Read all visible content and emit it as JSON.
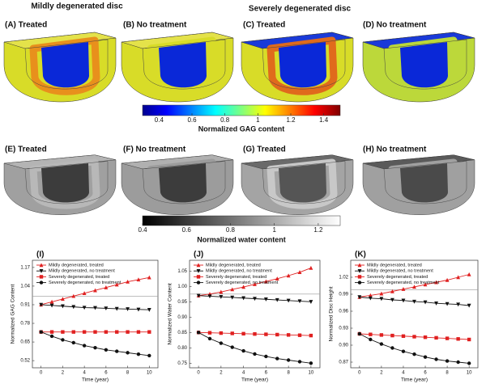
{
  "header": {
    "left_title": "Mildly degenerated disc",
    "right_title": "Severely degenerated disc"
  },
  "panels": [
    "(A) Treated",
    "(B) No treatment",
    "(C) Treated",
    "(D) No treatment",
    "(E) Treated",
    "(F) No treatment",
    "(G) Treated",
    "(H) No treatment"
  ],
  "colorbars": [
    {
      "label": "Normalized GAG content",
      "lim": [
        0.3,
        1.5
      ],
      "ticks": [
        0.4,
        0.6,
        0.8,
        1,
        1.2,
        1.4
      ]
    },
    {
      "label": "Normalized water content",
      "lim": [
        0.4,
        1.3
      ],
      "ticks": [
        0.4,
        0.6,
        0.8,
        1,
        1.2
      ]
    }
  ],
  "chart_data": [
    {
      "type": "line",
      "panel_label": "(I)",
      "xlabel": "Time (year)",
      "ylabel": "Normalized GAG Content",
      "legend": "upper left",
      "x": [
        0,
        1,
        2,
        3,
        4,
        5,
        6,
        7,
        8,
        9,
        10
      ],
      "xlim": [
        -0.8,
        10.8
      ],
      "xticks": [
        0,
        2,
        4,
        6,
        8,
        10
      ],
      "ylim": [
        0.47,
        1.22
      ],
      "yticks": [
        0.52,
        0.65,
        0.78,
        0.91,
        1.04,
        1.17
      ],
      "reference_line": 0.97,
      "series": [
        {
          "name": "Mildly degenerated, treated",
          "color": "#e02020",
          "marker": "triangle-up",
          "values": [
            0.91,
            0.93,
            0.95,
            0.97,
            0.99,
            1.01,
            1.03,
            1.05,
            1.07,
            1.085,
            1.1
          ]
        },
        {
          "name": "Mildly degenerated, no treatment",
          "color": "#111111",
          "marker": "triangle-down",
          "values": [
            0.91,
            0.905,
            0.9,
            0.895,
            0.89,
            0.888,
            0.885,
            0.882,
            0.88,
            0.877,
            0.875
          ]
        },
        {
          "name": "Severely degenerated, treated",
          "color": "#e02020",
          "marker": "square",
          "values": [
            0.72,
            0.72,
            0.72,
            0.72,
            0.72,
            0.72,
            0.72,
            0.72,
            0.72,
            0.72,
            0.72
          ]
        },
        {
          "name": "Severely degenerated, no treatment",
          "color": "#111111",
          "marker": "circle",
          "values": [
            0.72,
            0.69,
            0.665,
            0.645,
            0.625,
            0.61,
            0.595,
            0.585,
            0.575,
            0.565,
            0.555
          ]
        }
      ]
    },
    {
      "type": "line",
      "panel_label": "(J)",
      "xlabel": "Time (year)",
      "ylabel": "Normalized Water Content",
      "legend": "upper left",
      "x": [
        0,
        1,
        2,
        3,
        4,
        5,
        6,
        7,
        8,
        9,
        10
      ],
      "xlim": [
        -0.8,
        10.8
      ],
      "xticks": [
        0,
        2,
        4,
        6,
        8,
        10
      ],
      "ylim": [
        0.735,
        1.085
      ],
      "yticks": [
        0.75,
        {
          "value": 0.8,
          "label": "0.80"
        },
        0.85,
        {
          "value": 0.9,
          "label": "0.90"
        },
        0.95,
        {
          "value": 1,
          "label": "1.00"
        },
        1.05
      ],
      "reference_line": 0.975,
      "series": [
        {
          "name": "Mildly degenerated, treated",
          "color": "#e02020",
          "marker": "triangle-up",
          "values": [
            0.97,
            0.975,
            0.982,
            0.99,
            0.998,
            1.007,
            1.016,
            1.025,
            1.035,
            1.046,
            1.06
          ]
        },
        {
          "name": "Mildly degenerated, no treatment",
          "color": "#111111",
          "marker": "triangle-down",
          "values": [
            0.97,
            0.968,
            0.966,
            0.964,
            0.962,
            0.96,
            0.958,
            0.956,
            0.954,
            0.952,
            0.95
          ]
        },
        {
          "name": "Severely degenerated, treated",
          "color": "#e02020",
          "marker": "square",
          "values": [
            0.85,
            0.849,
            0.848,
            0.847,
            0.846,
            0.845,
            0.844,
            0.843,
            0.842,
            0.841,
            0.84
          ]
        },
        {
          "name": "Severely degenerated, no treatment",
          "color": "#111111",
          "marker": "circle",
          "values": [
            0.85,
            0.83,
            0.815,
            0.802,
            0.79,
            0.78,
            0.772,
            0.765,
            0.76,
            0.755,
            0.75
          ]
        }
      ]
    },
    {
      "type": "line",
      "panel_label": "(K)",
      "xlabel": "Time (year)",
      "ylabel": "Normalized Disc Height",
      "legend": "upper left",
      "x": [
        0,
        1,
        2,
        3,
        4,
        5,
        6,
        7,
        8,
        9,
        10
      ],
      "xlim": [
        -0.8,
        10.8
      ],
      "xticks": [
        0,
        2,
        4,
        6,
        8,
        10
      ],
      "ylim": [
        0.86,
        1.05
      ],
      "yticks": [
        0.87,
        {
          "value": 0.9,
          "label": "0.90"
        },
        0.93,
        0.96,
        0.99,
        1.02
      ],
      "reference_line": 0.998,
      "series": [
        {
          "name": "Mildly degenerated, treated",
          "color": "#e02020",
          "marker": "triangle-up",
          "values": [
            0.985,
            0.988,
            0.991,
            0.995,
            0.999,
            1.003,
            1.007,
            1.011,
            1.015,
            1.02,
            1.025
          ]
        },
        {
          "name": "Mildly degenerated, no treatment",
          "color": "#111111",
          "marker": "triangle-down",
          "values": [
            0.985,
            0.983,
            0.982,
            0.98,
            0.979,
            0.977,
            0.976,
            0.974,
            0.973,
            0.972,
            0.97
          ]
        },
        {
          "name": "Severely degenerated, treated",
          "color": "#e02020",
          "marker": "square",
          "values": [
            0.92,
            0.919,
            0.918,
            0.917,
            0.916,
            0.915,
            0.914,
            0.913,
            0.912,
            0.911,
            0.91
          ]
        },
        {
          "name": "Severely degenerated, no treatment",
          "color": "#111111",
          "marker": "circle",
          "values": [
            0.92,
            0.91,
            0.902,
            0.895,
            0.889,
            0.884,
            0.879,
            0.875,
            0.872,
            0.87,
            0.868
          ]
        }
      ]
    }
  ]
}
